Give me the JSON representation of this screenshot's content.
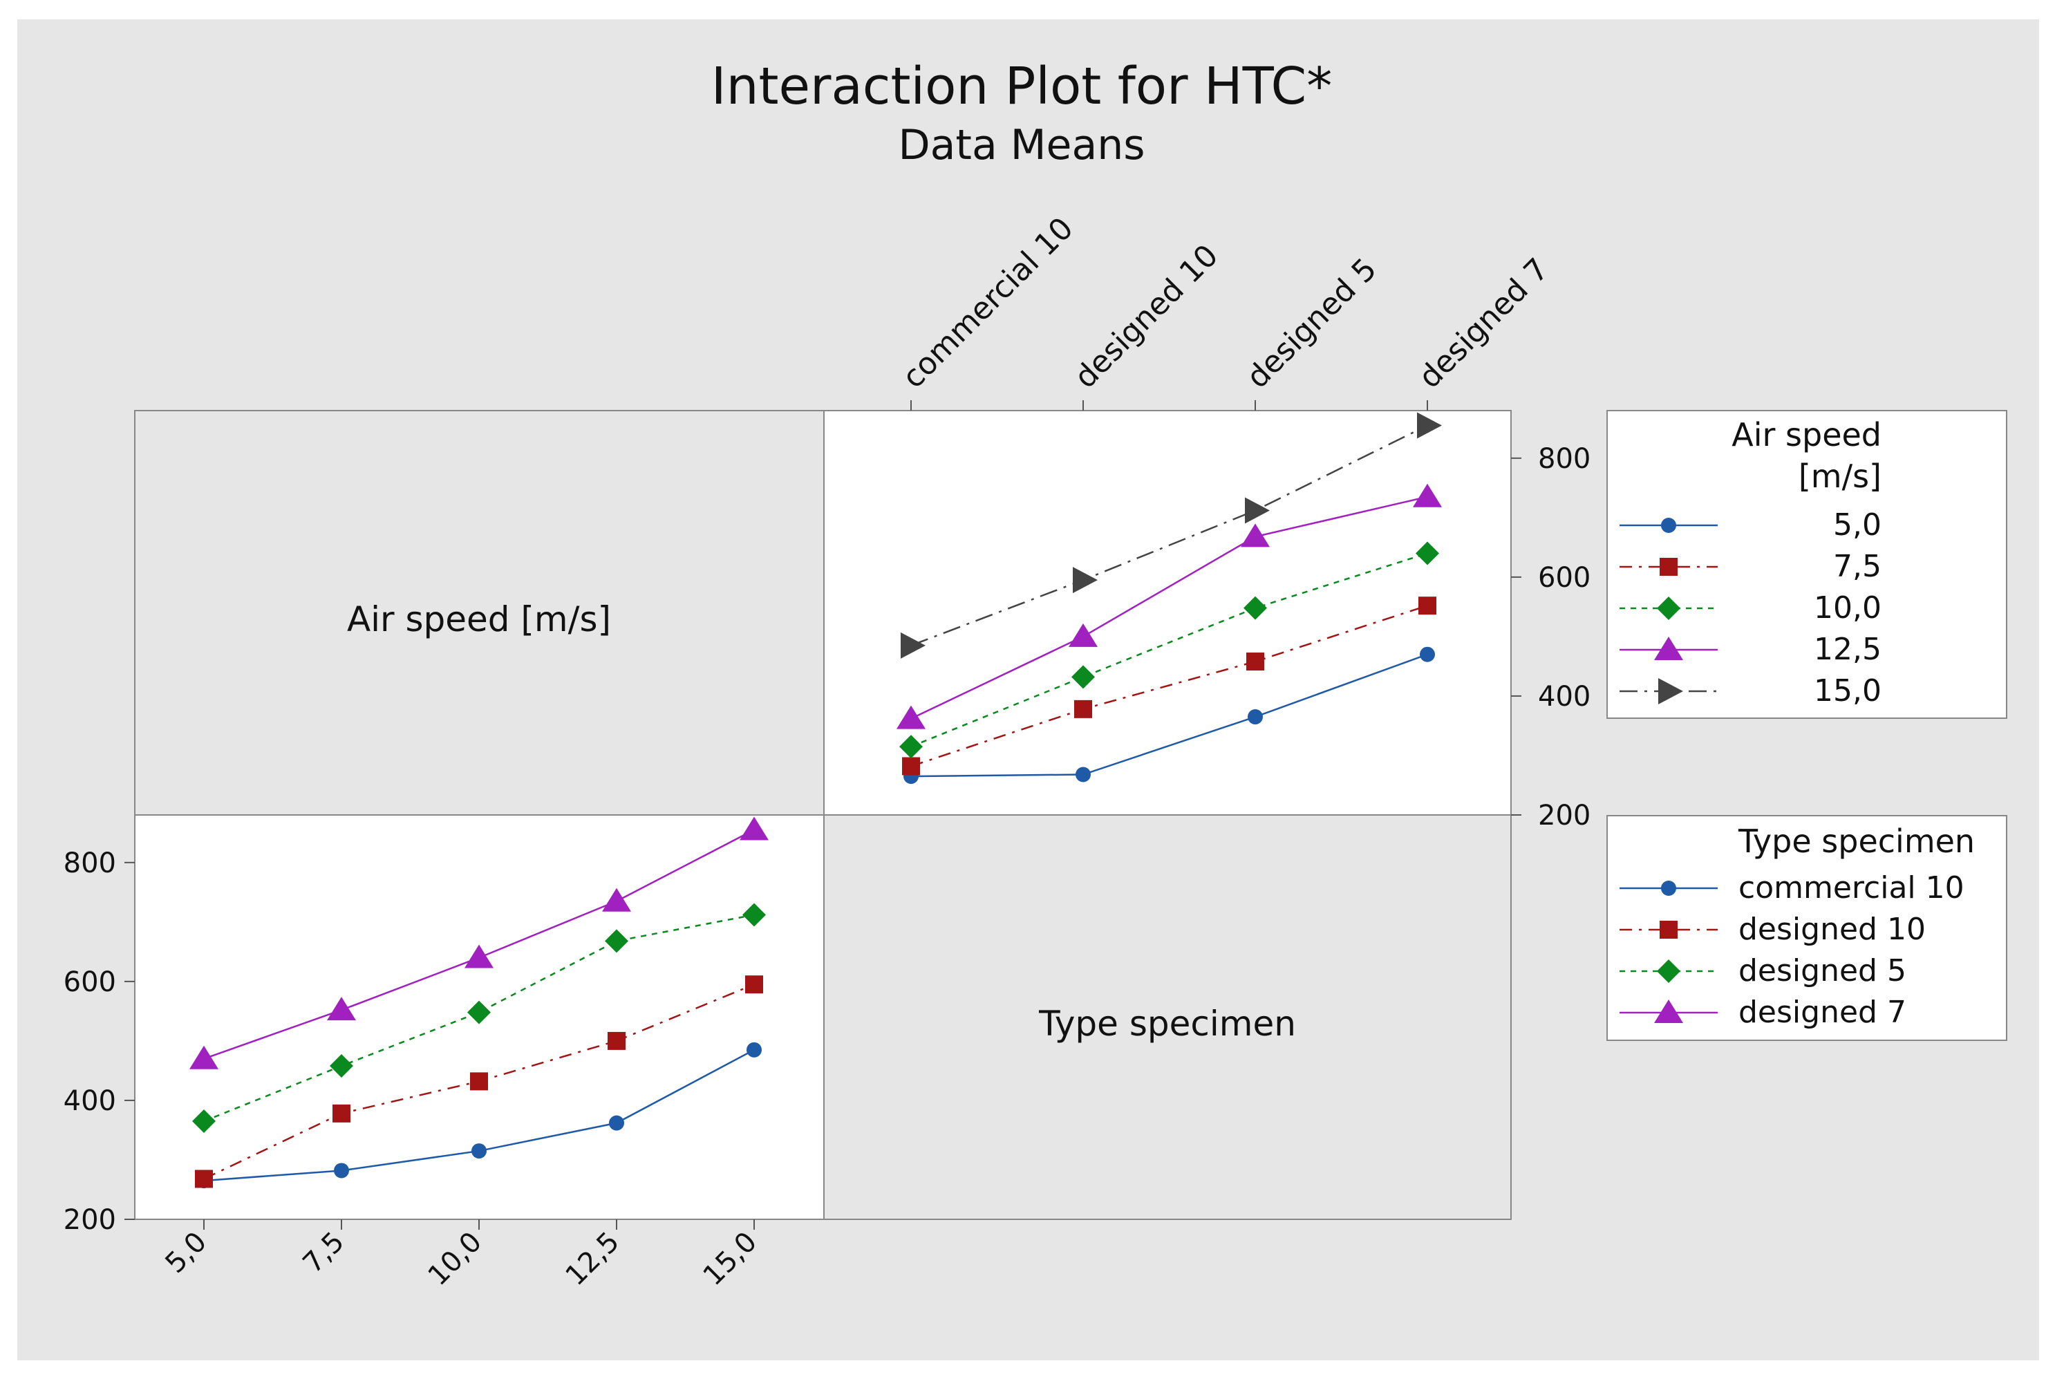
{
  "title": "Interaction Plot for HTC*",
  "subtitle": "Data Means",
  "colors": {
    "background": "#ffffff",
    "frame": "#e6e6e6",
    "panel": "#ffffff",
    "series": [
      "#1f5aa6",
      "#a31515",
      "#0a8a1e",
      "#a020c0",
      "#444444"
    ]
  },
  "diag_labels": {
    "air_speed": "Air speed [m/s]",
    "type_specimen": "Type specimen"
  },
  "chart_data": [
    {
      "type": "line",
      "panel": "Air speed by Type specimen",
      "x_categories": [
        "commercial 10",
        "designed 10",
        "designed 5",
        "designed 7"
      ],
      "ylim": [
        200,
        880
      ],
      "yticks": [
        200,
        400,
        600,
        800
      ],
      "series": [
        {
          "name": "5,0",
          "values": [
            265,
            268,
            365,
            470
          ]
        },
        {
          "name": "7,5",
          "values": [
            282,
            378,
            458,
            552
          ]
        },
        {
          "name": "10,0",
          "values": [
            315,
            432,
            548,
            640
          ]
        },
        {
          "name": "12,5",
          "values": [
            362,
            500,
            668,
            735
          ]
        },
        {
          "name": "15,0",
          "values": [
            485,
            595,
            712,
            855
          ]
        }
      ]
    },
    {
      "type": "line",
      "panel": "Type specimen by Air speed",
      "x_categories": [
        "5,0",
        "7,5",
        "10,0",
        "12,5",
        "15,0"
      ],
      "ylim": [
        200,
        880
      ],
      "yticks": [
        200,
        400,
        600,
        800
      ],
      "series": [
        {
          "name": "commercial 10",
          "values": [
            265,
            282,
            315,
            362,
            485
          ]
        },
        {
          "name": "designed 10",
          "values": [
            268,
            378,
            432,
            500,
            595
          ]
        },
        {
          "name": "designed 5",
          "values": [
            365,
            458,
            548,
            668,
            712
          ]
        },
        {
          "name": "designed 7",
          "values": [
            470,
            552,
            640,
            735,
            855
          ]
        }
      ]
    }
  ],
  "legend_top": {
    "title_line1": "Air speed",
    "title_line2": "[m/s]",
    "entries": [
      "5,0",
      "7,5",
      "10,0",
      "12,5",
      "15,0"
    ]
  },
  "legend_bottom": {
    "title": "Type specimen",
    "entries": [
      "commercial 10",
      "designed 10",
      "designed 5",
      "designed 7"
    ]
  }
}
